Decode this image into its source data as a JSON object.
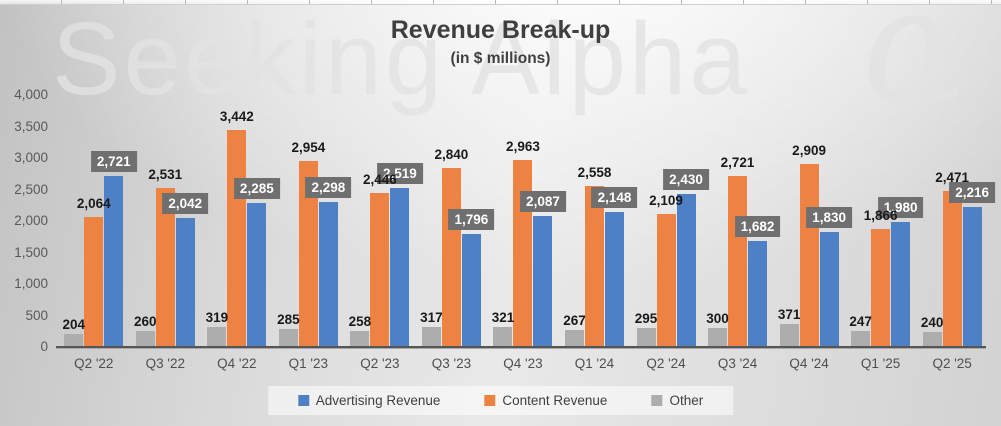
{
  "watermark": {
    "text": "Seeking Alpha",
    "alpha_glyph": "α"
  },
  "chart_data": {
    "type": "bar",
    "title": "Revenue Break-up",
    "subtitle": "(in $ millions)",
    "categories": [
      "Q2 '22",
      "Q3 '22",
      "Q4 '22",
      "Q1 '23",
      "Q2 '23",
      "Q3 '23",
      "Q4 '23",
      "Q1 '24",
      "Q2 '24",
      "Q3 '24",
      "Q4 '24",
      "Q1 '25",
      "Q2 '25"
    ],
    "series": [
      {
        "name": "Advertising Revenue",
        "color": "#4E80C6",
        "label_style": "boxed",
        "values": [
          2721,
          2042,
          2285,
          2298,
          2519,
          1796,
          2087,
          2148,
          2430,
          1682,
          1830,
          1980,
          2216
        ]
      },
      {
        "name": "Content Revenue",
        "color": "#ED8243",
        "label_style": "plain",
        "values": [
          2064,
          2531,
          3442,
          2954,
          2446,
          2840,
          2963,
          2558,
          2109,
          2721,
          2909,
          1866,
          2471
        ]
      },
      {
        "name": "Other",
        "color": "#ADADAD",
        "label_style": "other",
        "values": [
          204,
          260,
          319,
          285,
          258,
          317,
          321,
          267,
          295,
          300,
          371,
          247,
          240
        ]
      }
    ],
    "bar_render_order": [
      2,
      1,
      0
    ],
    "ylim": [
      0,
      4000
    ],
    "yticks": [
      "4,000",
      "3,500",
      "3,000",
      "2,500",
      "2,000",
      "1,500",
      "1,000",
      "500",
      "0"
    ],
    "grid": false,
    "legend_position": "bottom",
    "label_box_color": "#6F6F6F",
    "axis_color": "#565656"
  }
}
